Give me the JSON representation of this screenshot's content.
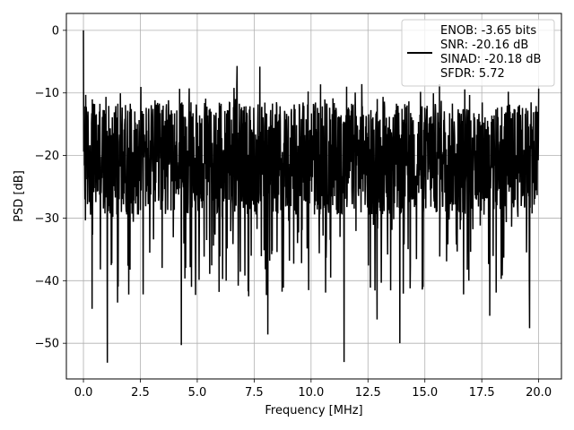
{
  "chart_data": {
    "type": "line",
    "title": "",
    "xlabel": "Frequency [MHz]",
    "ylabel": "PSD [dB]",
    "xlim": [
      -0.75,
      21.0
    ],
    "ylim": [
      -55.7,
      2.7
    ],
    "xticks": [
      0.0,
      2.5,
      5.0,
      7.5,
      10.0,
      12.5,
      15.0,
      17.5,
      20.0
    ],
    "xtick_labels": [
      "0.0",
      "2.5",
      "5.0",
      "7.5",
      "10.0",
      "12.5",
      "15.0",
      "17.5",
      "20.0"
    ],
    "yticks": [
      0,
      -10,
      -20,
      -30,
      -40,
      -50
    ],
    "ytick_labels": [
      "0",
      "−10",
      "−20",
      "−30",
      "−40",
      "−50"
    ],
    "grid": true,
    "legend_position": "top-right",
    "line_color": "#000000",
    "series": [
      {
        "legend_lines": [
          "ENOB: -3.65 bits",
          "SNR: -20.16 dB",
          "SINAD: -20.18 dB",
          "SFDR: 5.72"
        ],
        "x_start": 0.0,
        "x_end": 20.0,
        "noise_floor_center": -20.5,
        "peaks": [
          {
            "x": 0.0,
            "y": 0.0
          },
          {
            "x": 0.1,
            "y": -10.3
          },
          {
            "x": 6.75,
            "y": -5.7
          },
          {
            "x": 7.75,
            "y": -5.8
          },
          {
            "x": 20.0,
            "y": -9.3
          }
        ],
        "dips": [
          {
            "x": 0.38,
            "y": -44.5
          },
          {
            "x": 1.05,
            "y": -53.1
          },
          {
            "x": 1.5,
            "y": -43.5
          },
          {
            "x": 4.3,
            "y": -50.3
          },
          {
            "x": 6.8,
            "y": -40.8
          },
          {
            "x": 8.1,
            "y": -48.6
          },
          {
            "x": 11.45,
            "y": -53.0
          },
          {
            "x": 12.9,
            "y": -46.2
          },
          {
            "x": 13.9,
            "y": -50.0
          },
          {
            "x": 16.7,
            "y": -42.2
          },
          {
            "x": 17.85,
            "y": -45.6
          },
          {
            "x": 19.6,
            "y": -47.6
          }
        ]
      }
    ]
  }
}
